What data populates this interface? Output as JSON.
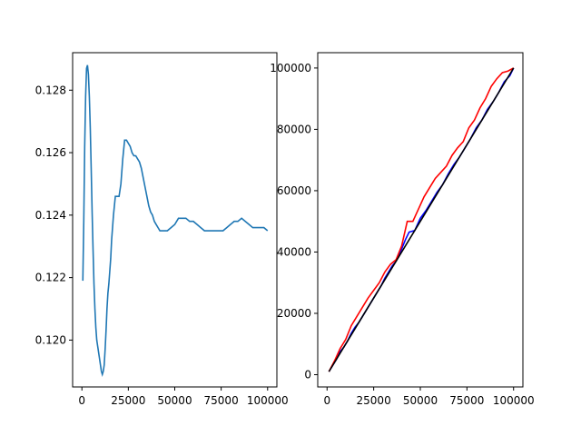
{
  "chart_data": [
    {
      "type": "line",
      "title": "",
      "xlabel": "",
      "ylabel": "",
      "xlim": [
        -5000,
        105000
      ],
      "ylim": [
        0.1185,
        0.1292
      ],
      "xticks": [
        0,
        25000,
        50000,
        75000,
        100000
      ],
      "xtick_labels": [
        "0",
        "25000",
        "50000",
        "75000",
        "100000"
      ],
      "yticks": [
        0.12,
        0.122,
        0.124,
        0.126,
        0.128
      ],
      "ytick_labels": [
        "0.120",
        "0.122",
        "0.124",
        "0.126",
        "0.128"
      ],
      "grid": false,
      "series": [
        {
          "color": "#1f77b4",
          "x": [
            500,
            1000,
            1500,
            2000,
            2500,
            3000,
            3500,
            4000,
            4500,
            5000,
            5500,
            6000,
            6500,
            7000,
            7500,
            8000,
            8500,
            9000,
            9500,
            10000,
            10500,
            11000,
            11500,
            12000,
            12500,
            13000,
            13500,
            14000,
            14500,
            15000,
            15500,
            16000,
            17000,
            18000,
            19000,
            20000,
            21000,
            22000,
            23000,
            24000,
            25000,
            26000,
            27000,
            28000,
            29000,
            30000,
            31000,
            32000,
            33000,
            34000,
            35000,
            36000,
            37000,
            38000,
            39000,
            40000,
            41000,
            42000,
            43000,
            44000,
            45000,
            46000,
            48000,
            50000,
            52000,
            54000,
            56000,
            58000,
            60000,
            62000,
            64000,
            66000,
            68000,
            70000,
            72000,
            74000,
            76000,
            78000,
            80000,
            82000,
            84000,
            86000,
            88000,
            90000,
            92000,
            94000,
            96000,
            98000,
            100000
          ],
          "values": [
            0.1219,
            0.1238,
            0.1262,
            0.1278,
            0.1287,
            0.1288,
            0.1285,
            0.1278,
            0.1268,
            0.1255,
            0.1241,
            0.1229,
            0.1218,
            0.121,
            0.1204,
            0.12,
            0.1198,
            0.1196,
            0.1194,
            0.1192,
            0.119,
            0.1189,
            0.119,
            0.1192,
            0.1197,
            0.1203,
            0.121,
            0.1215,
            0.1218,
            0.1222,
            0.1226,
            0.1232,
            0.124,
            0.1246,
            0.1246,
            0.1246,
            0.125,
            0.1258,
            0.1264,
            0.1264,
            0.1263,
            0.1262,
            0.126,
            0.1259,
            0.1259,
            0.1258,
            0.1257,
            0.1255,
            0.1252,
            0.1249,
            0.1246,
            0.1243,
            0.1241,
            0.124,
            0.1238,
            0.1237,
            0.1236,
            0.1235,
            0.1235,
            0.1235,
            0.1235,
            0.1235,
            0.1236,
            0.1237,
            0.1239,
            0.1239,
            0.1239,
            0.1238,
            0.1238,
            0.1237,
            0.1236,
            0.1235,
            0.1235,
            0.1235,
            0.1235,
            0.1235,
            0.1235,
            0.1236,
            0.1237,
            0.1238,
            0.1238,
            0.1239,
            0.1238,
            0.1237,
            0.1236,
            0.1236,
            0.1236,
            0.1236,
            0.1235
          ]
        }
      ]
    },
    {
      "type": "line",
      "title": "",
      "xlabel": "",
      "ylabel": "",
      "xlim": [
        -5000,
        105000
      ],
      "ylim": [
        -4000,
        105000
      ],
      "xticks": [
        0,
        25000,
        50000,
        75000,
        100000
      ],
      "xtick_labels": [
        "0",
        "25000",
        "50000",
        "75000",
        "100000"
      ],
      "yticks": [
        0,
        20000,
        40000,
        60000,
        80000,
        100000
      ],
      "ytick_labels": [
        "0",
        "20000",
        "40000",
        "60000",
        "80000",
        "100000"
      ],
      "grid": false,
      "series": [
        {
          "color": "#0000ff",
          "x": [
            1000,
            3000,
            5000,
            7000,
            9000,
            11000,
            13000,
            15000,
            17000,
            19000,
            21000,
            23000,
            25000,
            27000,
            29000,
            31000,
            33000,
            35000,
            37000,
            40000,
            42000,
            44000,
            47000,
            50000,
            53000,
            56000,
            59000,
            62000,
            65000,
            68000,
            71000,
            74000,
            77000,
            80000,
            83000,
            86000,
            89000,
            92000,
            95000,
            98000,
            100000
          ],
          "values": [
            1000,
            3000,
            5000,
            7500,
            9000,
            11000,
            13500,
            15500,
            17000,
            19000,
            21000,
            23000,
            25000,
            27000,
            29000,
            31500,
            33500,
            35500,
            37000,
            41000,
            44000,
            46500,
            47000,
            51000,
            53500,
            56500,
            59500,
            62000,
            65500,
            68500,
            71000,
            74000,
            77000,
            80500,
            83000,
            86500,
            89000,
            92000,
            95500,
            97500,
            100000
          ]
        },
        {
          "color": "#ff0000",
          "x": [
            1000,
            4000,
            7000,
            10000,
            13000,
            16000,
            19000,
            22000,
            25000,
            28000,
            31000,
            34000,
            37000,
            40000,
            43000,
            46000,
            49000,
            52000,
            55000,
            58000,
            61000,
            64000,
            67000,
            70000,
            73000,
            76000,
            79000,
            82000,
            85000,
            88000,
            91000,
            94000,
            97000,
            100000
          ],
          "values": [
            1000,
            4500,
            8500,
            11500,
            16000,
            19000,
            22000,
            25000,
            27500,
            30000,
            33500,
            36000,
            37500,
            42000,
            50000,
            50000,
            54000,
            58000,
            61000,
            64000,
            66000,
            68000,
            71500,
            74000,
            76000,
            80500,
            83000,
            87000,
            90000,
            94000,
            96500,
            98500,
            99000,
            100000
          ]
        },
        {
          "color": "#000000",
          "x": [
            1000,
            100000
          ],
          "values": [
            1000,
            100000
          ]
        }
      ]
    }
  ]
}
